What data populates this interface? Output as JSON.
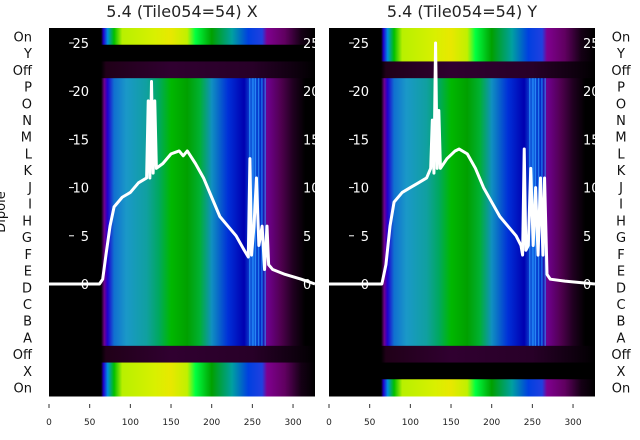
{
  "chart_data": [
    {
      "type": "heatmap",
      "title": "5.4 (Tile054=54) X",
      "ylabel": "Dipole",
      "rows": [
        "On",
        "Y",
        "Off",
        "P",
        "O",
        "N",
        "M",
        "L",
        "K",
        "J",
        "I",
        "H",
        "G",
        "F",
        "E",
        "D",
        "C",
        "B",
        "A",
        "Off",
        "X",
        "On"
      ],
      "active_rows_top": [
        "On"
      ],
      "active_rows_bottom": [
        "X",
        "On"
      ],
      "xticks": [
        0,
        50,
        100,
        150,
        200,
        250,
        300
      ],
      "xlim": [
        0,
        327
      ],
      "overlay_yticks": [
        0,
        5,
        10,
        15,
        20,
        25
      ],
      "overlay_ylim": [
        -2.4,
        25.8
      ],
      "line": [
        [
          0,
          0
        ],
        [
          62,
          0
        ],
        [
          66,
          0.5
        ],
        [
          70,
          3
        ],
        [
          75,
          6
        ],
        [
          80,
          8
        ],
        [
          90,
          9
        ],
        [
          100,
          9.5
        ],
        [
          110,
          10.5
        ],
        [
          120,
          11
        ],
        [
          122,
          19
        ],
        [
          124,
          11
        ],
        [
          126,
          21
        ],
        [
          128,
          11.5
        ],
        [
          130,
          19
        ],
        [
          132,
          12
        ],
        [
          140,
          12.5
        ],
        [
          150,
          13.5
        ],
        [
          160,
          13.8
        ],
        [
          165,
          13.3
        ],
        [
          170,
          13.8
        ],
        [
          180,
          12.5
        ],
        [
          190,
          11
        ],
        [
          200,
          9
        ],
        [
          210,
          7
        ],
        [
          220,
          6
        ],
        [
          230,
          5
        ],
        [
          240,
          3.5
        ],
        [
          245,
          2.8
        ],
        [
          247,
          13
        ],
        [
          249,
          3
        ],
        [
          252,
          6
        ],
        [
          255,
          11
        ],
        [
          258,
          4
        ],
        [
          262,
          6
        ],
        [
          265,
          1.5
        ],
        [
          268,
          6
        ],
        [
          270,
          2
        ],
        [
          275,
          1.5
        ],
        [
          290,
          1
        ],
        [
          310,
          0.5
        ],
        [
          327,
          0
        ]
      ]
    },
    {
      "type": "heatmap",
      "title": "5.4 (Tile054=54) Y",
      "ylabel": "",
      "rows": [
        "On",
        "Y",
        "Off",
        "P",
        "O",
        "N",
        "M",
        "L",
        "K",
        "J",
        "I",
        "H",
        "G",
        "F",
        "E",
        "D",
        "C",
        "B",
        "A",
        "Off",
        "X",
        "On"
      ],
      "active_rows_top": [
        "On",
        "Y"
      ],
      "active_rows_bottom": [
        "On"
      ],
      "xticks": [
        0,
        50,
        100,
        150,
        200,
        250,
        300
      ],
      "xlim": [
        0,
        327
      ],
      "overlay_yticks": [
        0,
        5,
        10,
        15,
        20,
        25
      ],
      "overlay_ylim": [
        -2.4,
        25.8
      ],
      "line": [
        [
          0,
          0
        ],
        [
          65,
          0
        ],
        [
          70,
          2
        ],
        [
          75,
          6
        ],
        [
          80,
          8.5
        ],
        [
          90,
          9.5
        ],
        [
          100,
          10
        ],
        [
          110,
          10.5
        ],
        [
          120,
          11
        ],
        [
          125,
          12
        ],
        [
          127,
          17
        ],
        [
          129,
          11.5
        ],
        [
          131,
          25
        ],
        [
          133,
          12
        ],
        [
          135,
          18
        ],
        [
          137,
          12
        ],
        [
          145,
          13
        ],
        [
          155,
          13.8
        ],
        [
          160,
          14
        ],
        [
          170,
          13.5
        ],
        [
          180,
          12
        ],
        [
          190,
          10
        ],
        [
          200,
          8.5
        ],
        [
          210,
          7
        ],
        [
          220,
          6
        ],
        [
          230,
          5
        ],
        [
          236,
          4
        ],
        [
          238,
          3
        ],
        [
          240,
          14
        ],
        [
          242,
          3.5
        ],
        [
          245,
          4
        ],
        [
          248,
          12
        ],
        [
          251,
          4
        ],
        [
          254,
          10
        ],
        [
          257,
          3
        ],
        [
          260,
          11
        ],
        [
          263,
          3
        ],
        [
          265,
          11
        ],
        [
          268,
          1
        ],
        [
          272,
          0.5
        ],
        [
          290,
          0.3
        ],
        [
          327,
          0
        ]
      ]
    }
  ]
}
